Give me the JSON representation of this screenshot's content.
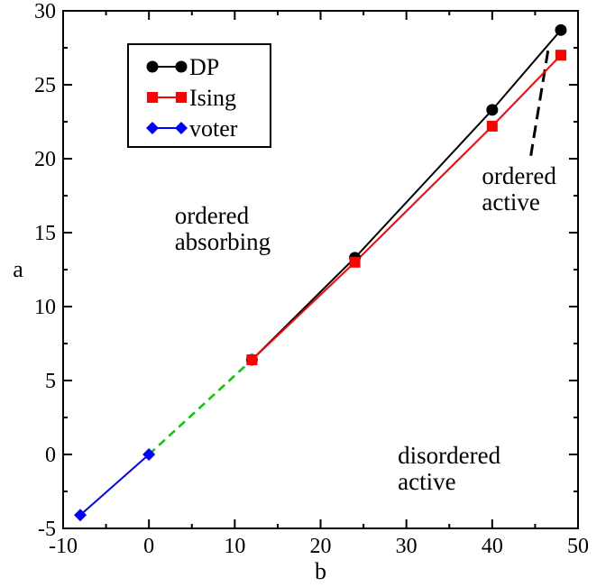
{
  "chart_data": {
    "type": "line",
    "title": "",
    "xlabel": "b",
    "ylabel": "a",
    "xlim": [
      -10,
      50
    ],
    "ylim": [
      -5,
      30
    ],
    "xticks": [
      "-10",
      "0",
      "10",
      "20",
      "30",
      "40",
      "50"
    ],
    "yticks": [
      "-5",
      "0",
      "5",
      "10",
      "15",
      "20",
      "25",
      "30"
    ],
    "grid": false,
    "legend_position": "top-left",
    "series": [
      {
        "name": "DP",
        "color": "#000000",
        "marker": "circle",
        "x": [
          12,
          24,
          40,
          48
        ],
        "y": [
          6.4,
          13.3,
          23.3,
          28.7
        ]
      },
      {
        "name": "Ising",
        "color": "#ff0000",
        "marker": "square",
        "x": [
          12,
          24,
          40,
          48
        ],
        "y": [
          6.4,
          13.0,
          22.2,
          27.0
        ]
      },
      {
        "name": "voter",
        "color": "#0000ff",
        "marker": "diamond",
        "x": [
          -8,
          0
        ],
        "y": [
          -4.1,
          0
        ]
      }
    ],
    "extra_lines": [
      {
        "color": "#00cc00",
        "style": "dashed",
        "x": [
          0,
          12
        ],
        "y": [
          0,
          6.4
        ]
      },
      {
        "color": "#000000",
        "style": "dashed",
        "x": [
          46.5,
          44.5
        ],
        "y": [
          27.3,
          20.2
        ]
      }
    ],
    "annotations": [
      {
        "lines": [
          "ordered",
          "absorbing"
        ],
        "x": 3,
        "y": 15.6
      },
      {
        "lines": [
          "ordered",
          "active"
        ],
        "x": 38.8,
        "y": 18.3
      },
      {
        "lines": [
          "disordered",
          "active"
        ],
        "x": 29,
        "y": -0.6
      }
    ]
  }
}
